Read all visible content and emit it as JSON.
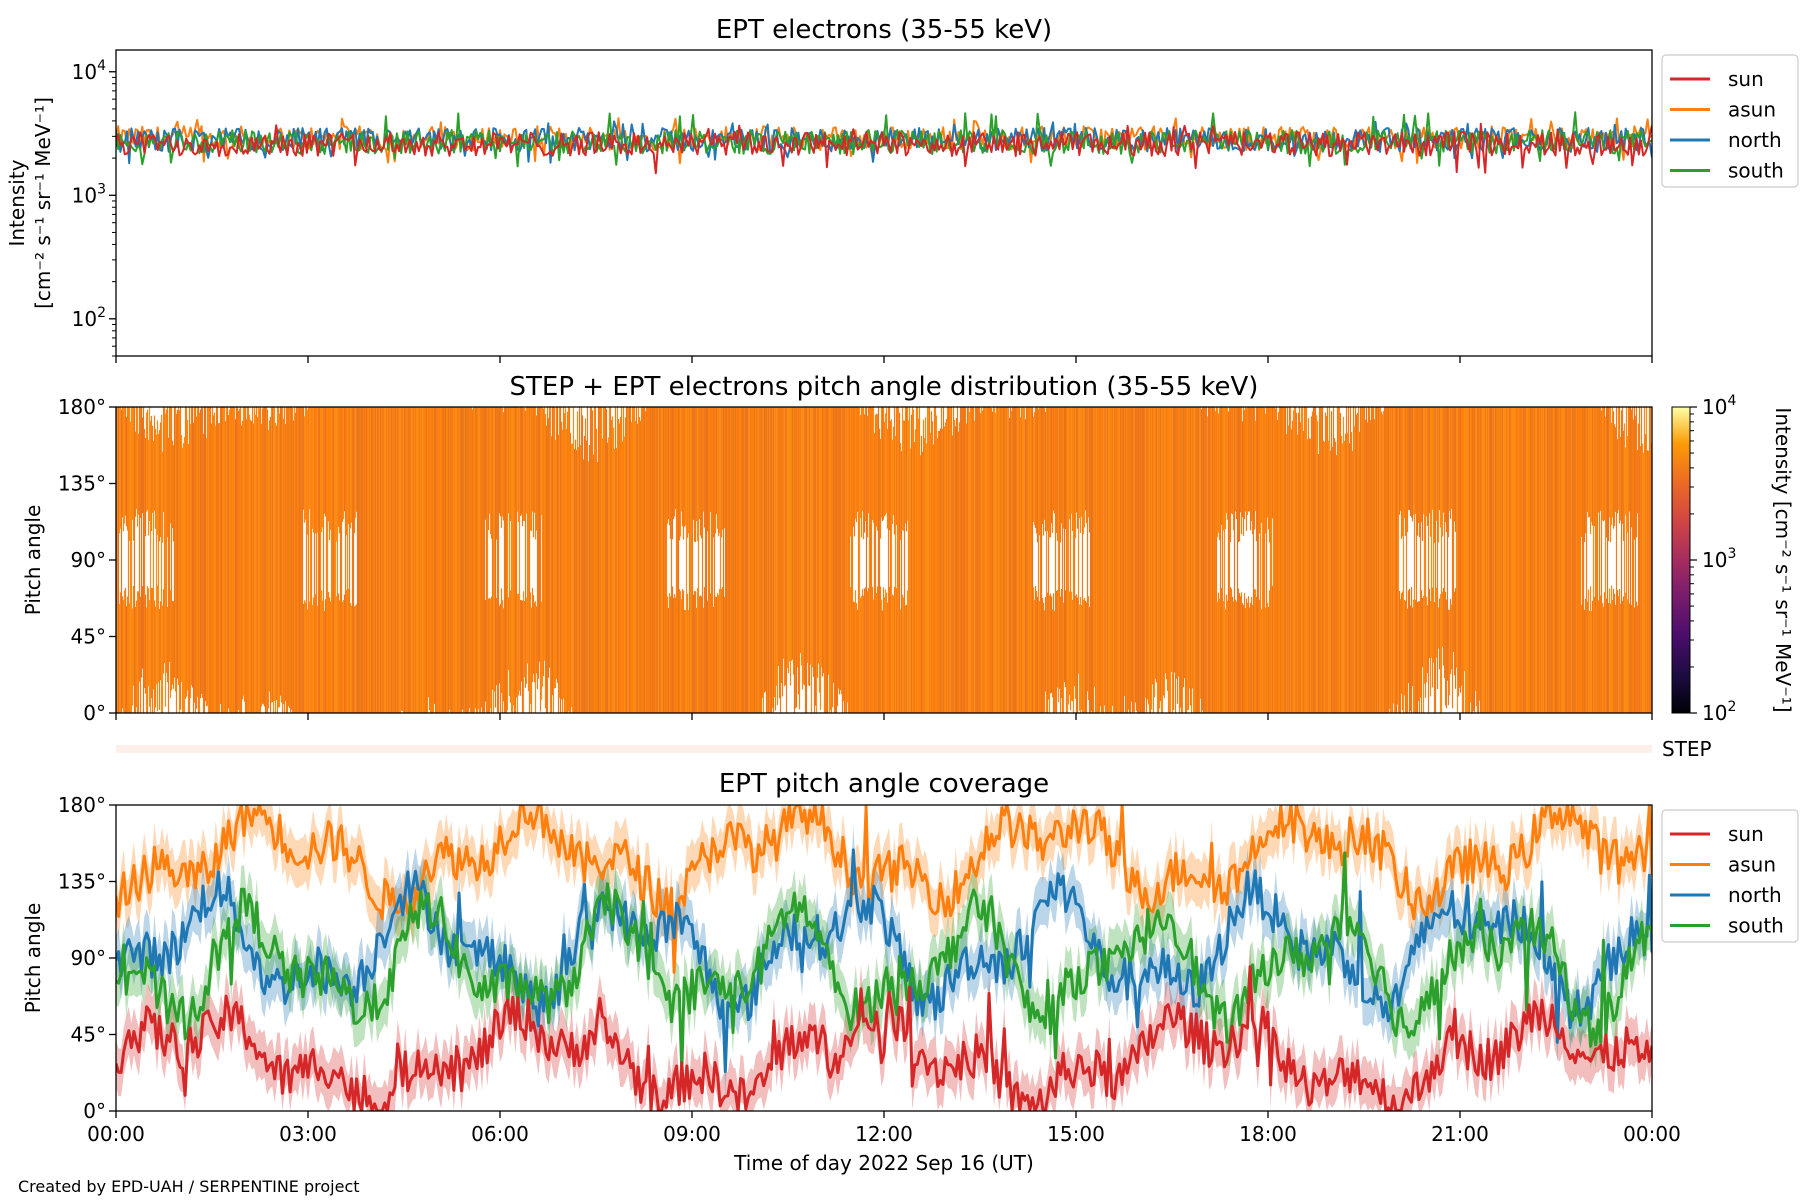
{
  "figure": {
    "credit": "Created by EPD-UAH / SERPENTINE project",
    "xlabel": "Time of day 2022 Sep 16 (UT)",
    "xticks": [
      "00:00",
      "03:00",
      "06:00",
      "09:00",
      "12:00",
      "15:00",
      "18:00",
      "21:00",
      "00:00"
    ]
  },
  "chart_data": [
    {
      "type": "line",
      "title": "EPT electrons (35-55 keV)",
      "ylabel_line1": "Intensity",
      "ylabel_line2": "[cm⁻² s⁻¹ sr⁻¹ MeV⁻¹]",
      "yscale": "log",
      "ylim": [
        50,
        15000
      ],
      "ytick_labels": [
        {
          "base": "10",
          "exp": "2"
        },
        {
          "base": "10",
          "exp": "3"
        },
        {
          "base": "10",
          "exp": "4"
        }
      ],
      "xlim_hours": [
        0,
        24
      ],
      "legend_location": "outside-right-top",
      "series": [
        {
          "name": "sun",
          "color": "#d62728",
          "typical": 2600,
          "spread_min": 1500,
          "spread_max": 3800
        },
        {
          "name": "asun",
          "color": "#ff7f0e",
          "typical": 2900,
          "spread_min": 1800,
          "spread_max": 4200
        },
        {
          "name": "north",
          "color": "#1f77b4",
          "typical": 2800,
          "spread_min": 1800,
          "spread_max": 4000
        },
        {
          "name": "south",
          "color": "#2ca02c",
          "typical": 2700,
          "spread_min": 1700,
          "spread_max": 4700
        }
      ]
    },
    {
      "type": "heatmap",
      "title": "STEP + EPT electrons pitch angle distribution (35-55 keV)",
      "ylabel": "Pitch angle",
      "yticks": [
        "0°",
        "45°",
        "90°",
        "135°",
        "180°"
      ],
      "ylim": [
        0,
        180
      ],
      "xlim_hours": [
        0,
        24
      ],
      "dominant_intensity": 2800,
      "colorbar": {
        "scale": "log",
        "range": [
          100,
          10000
        ],
        "colormap": "inferno",
        "label": "Intensity [cm⁻² s⁻¹ sr⁻¹ MeV⁻¹]",
        "tick_labels": [
          {
            "base": "10",
            "exp": "2"
          },
          {
            "base": "10",
            "exp": "3"
          },
          {
            "base": "10",
            "exp": "4"
          }
        ]
      },
      "step_label": "STEP",
      "step_color": "#fdf0ea"
    },
    {
      "type": "line",
      "title": "EPT pitch angle coverage",
      "ylabel": "Pitch angle",
      "yticks": [
        "0°",
        "45°",
        "90°",
        "135°",
        "180°"
      ],
      "ylim": [
        0,
        180
      ],
      "xlim_hours": [
        0,
        24
      ],
      "legend_location": "outside-right-top",
      "shaded_bands": true,
      "series": [
        {
          "name": "sun",
          "color": "#d62728",
          "mean_deg": 30
        },
        {
          "name": "asun",
          "color": "#ff7f0e",
          "mean_deg": 150
        },
        {
          "name": "north",
          "color": "#1f77b4",
          "mean_deg": 95
        },
        {
          "name": "south",
          "color": "#2ca02c",
          "mean_deg": 85
        }
      ]
    }
  ]
}
